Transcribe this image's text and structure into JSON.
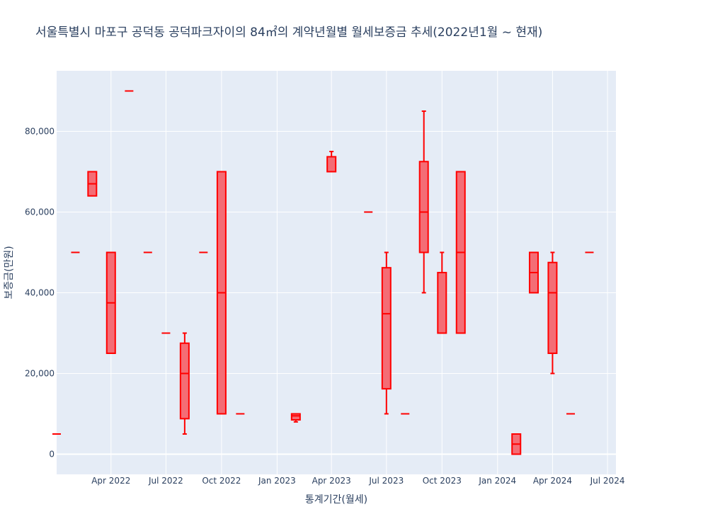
{
  "chart_data": {
    "type": "box",
    "title": "서울특별시 마포구 공덕동 공덕파크자이의 84㎡의 계약년월별 월세보증금 추세(2022년1월 ~ 현재)",
    "xlabel": "통계기간(월세)",
    "ylabel": "보증금(만원)",
    "ylim": [
      -5000,
      95000
    ],
    "xlim": [
      "2022-01-01",
      "2024-07-15"
    ],
    "grid": true,
    "legend": "none",
    "colors": {
      "box_line": "#ff0000",
      "box_fill": "#f46d75",
      "plot_bg": "#e5ecf6",
      "grid": "#ffffff",
      "text": "#2a3f5f"
    },
    "x_ticks": [
      {
        "date": "2022-04-01",
        "label": "Apr 2022"
      },
      {
        "date": "2022-07-01",
        "label": "Jul 2022"
      },
      {
        "date": "2022-10-01",
        "label": "Oct 2022"
      },
      {
        "date": "2023-01-01",
        "label": "Jan 2023"
      },
      {
        "date": "2023-04-01",
        "label": "Apr 2023"
      },
      {
        "date": "2023-07-01",
        "label": "Jul 2023"
      },
      {
        "date": "2023-10-01",
        "label": "Oct 2023"
      },
      {
        "date": "2024-01-01",
        "label": "Jan 2024"
      },
      {
        "date": "2024-04-01",
        "label": "Apr 2024"
      },
      {
        "date": "2024-07-01",
        "label": "Jul 2024"
      }
    ],
    "y_ticks": [
      {
        "value": 0,
        "label": "0"
      },
      {
        "value": 20000,
        "label": "20,000"
      },
      {
        "value": 40000,
        "label": "40,000"
      },
      {
        "value": 60000,
        "label": "60,000"
      },
      {
        "value": 80000,
        "label": "80,000"
      }
    ],
    "boxes": [
      {
        "date": "2022-01-01",
        "min": 5000,
        "q1": 5000,
        "median": 5000,
        "q3": 5000,
        "max": 5000
      },
      {
        "date": "2022-02-01",
        "min": 50000,
        "q1": 50000,
        "median": 50000,
        "q3": 50000,
        "max": 50000
      },
      {
        "date": "2022-03-01",
        "min": 64000,
        "q1": 64000,
        "median": 67000,
        "q3": 70000,
        "max": 70000
      },
      {
        "date": "2022-04-01",
        "min": 25000,
        "q1": 25000,
        "median": 37500,
        "q3": 50000,
        "max": 50000
      },
      {
        "date": "2022-05-01",
        "min": 90000,
        "q1": 90000,
        "median": 90000,
        "q3": 90000,
        "max": 90000
      },
      {
        "date": "2022-06-01",
        "min": 50000,
        "q1": 50000,
        "median": 50000,
        "q3": 50000,
        "max": 50000
      },
      {
        "date": "2022-07-01",
        "min": 30000,
        "q1": 30000,
        "median": 30000,
        "q3": 30000,
        "max": 30000
      },
      {
        "date": "2022-08-01",
        "min": 5000,
        "q1": 8800,
        "median": 20000,
        "q3": 27500,
        "max": 30000
      },
      {
        "date": "2022-09-01",
        "min": 50000,
        "q1": 50000,
        "median": 50000,
        "q3": 50000,
        "max": 50000
      },
      {
        "date": "2022-10-01",
        "min": 10000,
        "q1": 10000,
        "median": 40000,
        "q3": 70000,
        "max": 70000
      },
      {
        "date": "2022-11-01",
        "min": 10000,
        "q1": 10000,
        "median": 10000,
        "q3": 10000,
        "max": 10000
      },
      {
        "date": "2023-02-01",
        "min": 8000,
        "q1": 8500,
        "median": 9500,
        "q3": 10000,
        "max": 10000
      },
      {
        "date": "2023-04-01",
        "min": 70000,
        "q1": 70000,
        "median": 70000,
        "q3": 73700,
        "max": 75000
      },
      {
        "date": "2023-06-01",
        "min": 60000,
        "q1": 60000,
        "median": 60000,
        "q3": 60000,
        "max": 60000
      },
      {
        "date": "2023-07-01",
        "min": 10000,
        "q1": 16200,
        "median": 34800,
        "q3": 46200,
        "max": 50000
      },
      {
        "date": "2023-08-01",
        "min": 10000,
        "q1": 10000,
        "median": 10000,
        "q3": 10000,
        "max": 10000
      },
      {
        "date": "2023-09-01",
        "min": 40000,
        "q1": 50000,
        "median": 60000,
        "q3": 72500,
        "max": 85000
      },
      {
        "date": "2023-10-01",
        "min": 30000,
        "q1": 30000,
        "median": 30000,
        "q3": 45000,
        "max": 50000
      },
      {
        "date": "2023-11-01",
        "min": 30000,
        "q1": 30000,
        "median": 50000,
        "q3": 70000,
        "max": 70000
      },
      {
        "date": "2024-02-01",
        "min": 0,
        "q1": 0,
        "median": 2500,
        "q3": 5000,
        "max": 5000
      },
      {
        "date": "2024-03-01",
        "min": 40000,
        "q1": 40000,
        "median": 45000,
        "q3": 50000,
        "max": 50000
      },
      {
        "date": "2024-04-01",
        "min": 20000,
        "q1": 25000,
        "median": 40000,
        "q3": 47500,
        "max": 50000
      },
      {
        "date": "2024-05-01",
        "min": 10000,
        "q1": 10000,
        "median": 10000,
        "q3": 10000,
        "max": 10000
      },
      {
        "date": "2024-06-01",
        "min": 50000,
        "q1": 50000,
        "median": 50000,
        "q3": 50000,
        "max": 50000
      }
    ]
  }
}
